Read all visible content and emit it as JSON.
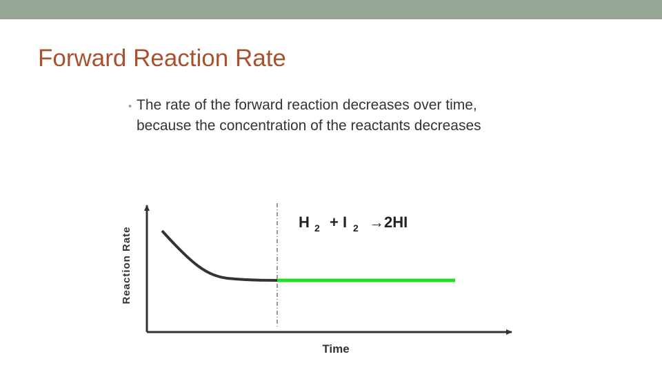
{
  "header": {
    "title": "Forward Reaction Rate"
  },
  "bullets": [
    {
      "lines": [
        "The rate of the forward reaction decreases over time,",
        "because the concentration of the reactants decreases"
      ]
    }
  ],
  "diagram": {
    "y_label": "Reaction Rate",
    "x_label": "Time",
    "equation": {
      "parts": [
        "H",
        "2",
        "+ I",
        "2",
        "→2HI"
      ]
    }
  }
}
